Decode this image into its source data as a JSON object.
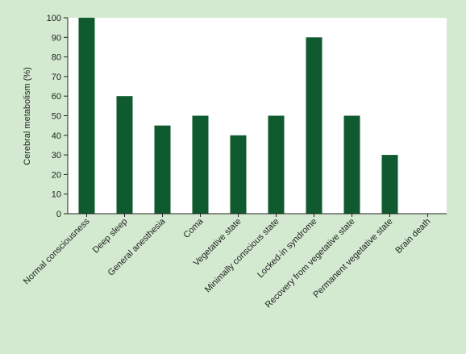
{
  "chart_data": {
    "type": "bar",
    "title": "",
    "xlabel": "",
    "ylabel": "Cerebral metabolism (%)",
    "ylim": [
      0,
      100
    ],
    "yticks": [
      0,
      10,
      20,
      30,
      40,
      50,
      60,
      70,
      80,
      90,
      100
    ],
    "grid": false,
    "categories": [
      "Normal consciousness",
      "Deep sleep",
      "General anesthesia",
      "Coma",
      "Vegetative state",
      "Minimally conscious state",
      "Locked-in syndrome",
      "Recovery from vegetative state",
      "Permanent vegetative state",
      "Brain death"
    ],
    "values": [
      100,
      60,
      45,
      50,
      40,
      50,
      90,
      50,
      30,
      0
    ],
    "colors": {
      "bar": "#0f5a2e",
      "plot_background": "#ffffff",
      "page_background": "#d3ead0",
      "axis": "#222222"
    }
  }
}
